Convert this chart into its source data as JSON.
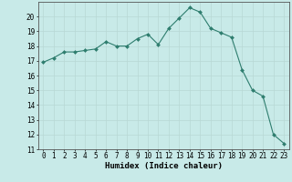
{
  "x": [
    0,
    1,
    2,
    3,
    4,
    5,
    6,
    7,
    8,
    9,
    10,
    11,
    12,
    13,
    14,
    15,
    16,
    17,
    18,
    19,
    20,
    21,
    22,
    23
  ],
  "y": [
    16.9,
    17.2,
    17.6,
    17.6,
    17.7,
    17.8,
    18.3,
    18.0,
    18.0,
    18.5,
    18.8,
    18.1,
    19.2,
    19.9,
    20.6,
    20.3,
    19.2,
    18.9,
    18.6,
    16.4,
    15.0,
    14.6,
    12.0,
    11.4
  ],
  "line_color": "#2e7d6e",
  "marker": "D",
  "marker_size": 2.0,
  "bg_color": "#c8eae8",
  "grid_color": "#b8d8d4",
  "xlabel": "Humidex (Indice chaleur)",
  "xlabel_fontsize": 6.5,
  "tick_fontsize": 5.5,
  "ylim": [
    11,
    21
  ],
  "xlim": [
    -0.5,
    23.5
  ],
  "yticks": [
    11,
    12,
    13,
    14,
    15,
    16,
    17,
    18,
    19,
    20
  ],
  "xticks": [
    0,
    1,
    2,
    3,
    4,
    5,
    6,
    7,
    8,
    9,
    10,
    11,
    12,
    13,
    14,
    15,
    16,
    17,
    18,
    19,
    20,
    21,
    22,
    23
  ]
}
